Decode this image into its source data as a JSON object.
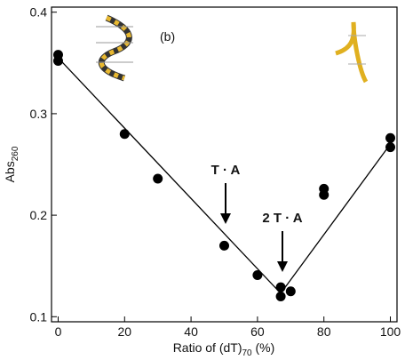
{
  "chart_data": {
    "type": "scatter",
    "panel_label": "(b)",
    "x_label_parts": [
      "Ratio of (dT)",
      "70",
      " (%)"
    ],
    "y_label_parts": [
      "Abs",
      "260"
    ],
    "annotations": [
      "T · A",
      "2 T · A"
    ],
    "series": [
      {
        "type": "scatter",
        "color": "#000000",
        "x": [
          0,
          0,
          20,
          30,
          50,
          60,
          67,
          67,
          70,
          80,
          80,
          100,
          100
        ],
        "values": [
          0.358,
          0.352,
          0.28,
          0.236,
          0.17,
          0.141,
          0.129,
          0.12,
          0.125,
          0.226,
          0.22,
          0.276,
          0.267
        ]
      },
      {
        "type": "line",
        "color": "#000000",
        "x": [
          0,
          67,
          100
        ],
        "values": [
          0.355,
          0.123,
          0.27
        ]
      }
    ],
    "xlim": [
      -2,
      102
    ],
    "ylim": [
      0.095,
      0.405
    ],
    "xticks": [
      0,
      20,
      40,
      60,
      80,
      100
    ],
    "yticks": [
      0.1,
      0.2,
      0.3,
      0.4
    ]
  }
}
